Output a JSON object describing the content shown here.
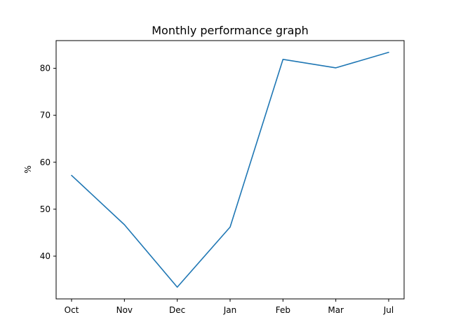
{
  "chart_data": {
    "type": "line",
    "title": "Monthly performance graph",
    "xlabel": "",
    "ylabel": "%",
    "categories": [
      "Oct",
      "Nov",
      "Dec",
      "Jan",
      "Feb",
      "Mar",
      "Jul"
    ],
    "series": [
      {
        "values": [
          57.2,
          46.7,
          33.4,
          46.2,
          81.9,
          80.1,
          83.4
        ]
      }
    ],
    "yticks": [
      40,
      50,
      60,
      70,
      80
    ],
    "ylim": [
      30.9,
      85.9
    ],
    "grid": false,
    "line_color": "#1f77b4"
  }
}
